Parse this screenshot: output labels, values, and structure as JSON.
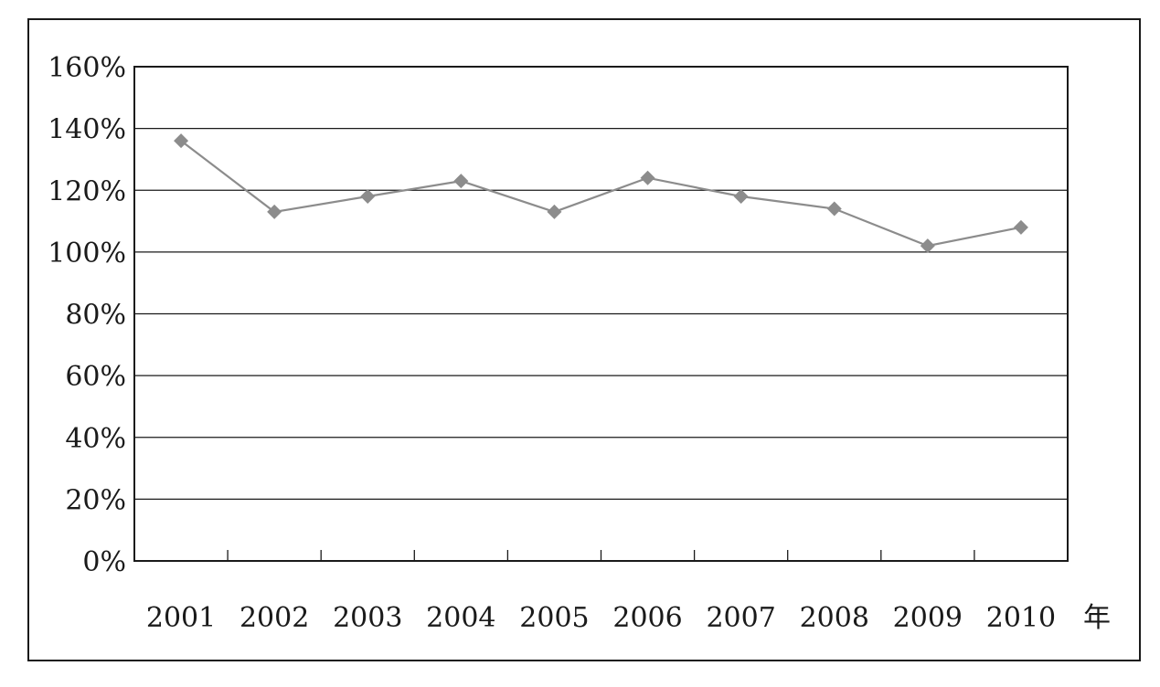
{
  "chart_data": {
    "type": "line",
    "x_unit_label": "年",
    "categories": [
      "2001",
      "2002",
      "2003",
      "2004",
      "2005",
      "2006",
      "2007",
      "2008",
      "2009",
      "2010"
    ],
    "series": [
      {
        "values": [
          136,
          113,
          118,
          123,
          113,
          124,
          118,
          114,
          102,
          108
        ]
      }
    ],
    "ylim": [
      0,
      160
    ],
    "yticks": [
      "0%",
      "20%",
      "40%",
      "60%",
      "80%",
      "100%",
      "120%",
      "140%",
      "160%"
    ],
    "grid": true,
    "marker": "diamond",
    "colors": {
      "line": "#8c8c8c",
      "marker": "#8c8c8c",
      "axis": "#1a1a1a",
      "grid": "#1a1a1a"
    }
  }
}
